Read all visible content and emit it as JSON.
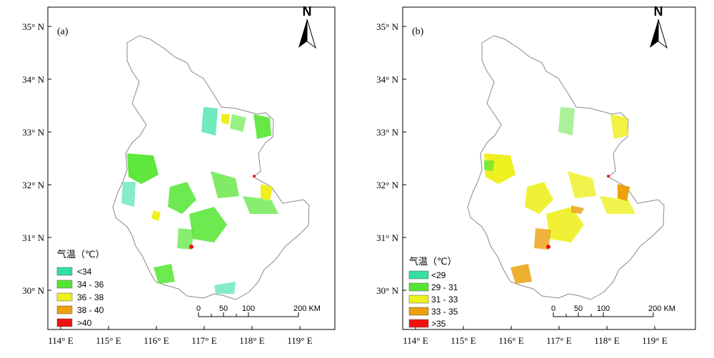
{
  "latitudes": [
    "35° N",
    "34° N",
    "33° N",
    "32° N",
    "31° N",
    "30° N"
  ],
  "longitudes": [
    "114° E",
    "115° E",
    "116° E",
    "117° E",
    "118° E",
    "119° E"
  ],
  "north_arrow": "N",
  "scale_bar": {
    "ticks": [
      "0",
      "50",
      "100",
      "200 KM"
    ]
  },
  "panels": [
    {
      "tag": "(a)",
      "legend_title": "气温（℃）",
      "legend": [
        {
          "label": "<34",
          "color": "#33e0a0"
        },
        {
          "label": "34  -  36",
          "color": "#55e633"
        },
        {
          "label": "36  -  38",
          "color": "#eef020"
        },
        {
          "label": "38  -  40",
          "color": "#eba00c"
        },
        {
          "label": ">40",
          "color": "#f01010"
        }
      ]
    },
    {
      "tag": "(b)",
      "legend_title": "气温（℃）",
      "legend": [
        {
          "label": "<29",
          "color": "#33e0a0"
        },
        {
          "label": "29  -  31",
          "color": "#55e633"
        },
        {
          "label": "31  -  33",
          "color": "#eef020"
        },
        {
          "label": "33  -  35",
          "color": "#eba00c"
        },
        {
          "label": ">35",
          "color": "#f01010"
        }
      ]
    }
  ]
}
